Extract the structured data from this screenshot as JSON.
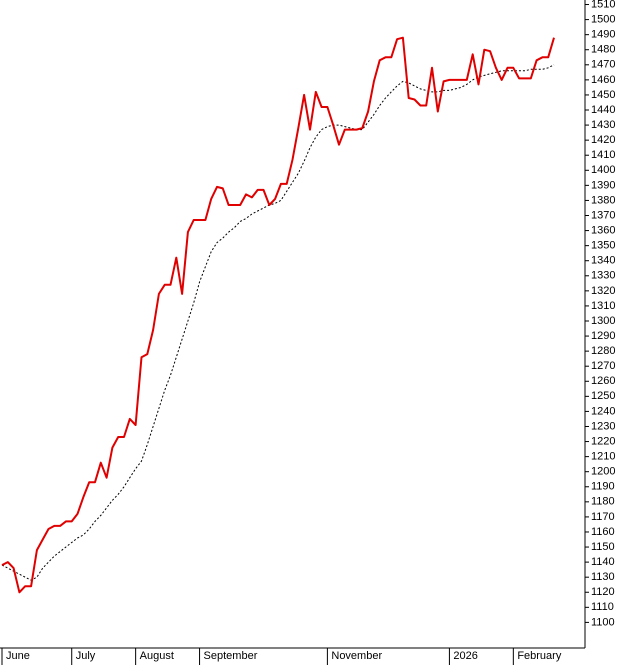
{
  "chart_data": {
    "type": "line",
    "categories": [
      "June",
      null,
      null,
      null,
      null,
      null,
      null,
      null,
      null,
      null,
      null,
      null,
      "July",
      null,
      null,
      null,
      null,
      null,
      null,
      null,
      null,
      null,
      null,
      "August",
      null,
      null,
      null,
      null,
      null,
      null,
      null,
      null,
      null,
      null,
      "September",
      null,
      null,
      null,
      null,
      null,
      null,
      null,
      null,
      null,
      null,
      null,
      null,
      null,
      null,
      null,
      null,
      null,
      null,
      null,
      null,
      null,
      "November",
      null,
      null,
      null,
      null,
      null,
      null,
      null,
      null,
      null,
      null,
      null,
      null,
      null,
      null,
      null,
      null,
      null,
      null,
      null,
      null,
      "2026",
      null,
      null,
      null,
      null,
      null,
      null,
      null,
      null,
      null,
      null,
      "February",
      null,
      null,
      null,
      null,
      null,
      null,
      null
    ],
    "series": [
      {
        "color": "#e00000",
        "style": "solid",
        "values": [
          1138,
          1140,
          1136,
          1120,
          1124,
          1124,
          1148,
          1155,
          1162,
          1164,
          1164,
          1167,
          1167,
          1172,
          1183,
          1193,
          1193,
          1206,
          1196,
          1216,
          1223,
          1223,
          1235,
          1231,
          1276,
          1278,
          1294,
          1318,
          1324,
          1324,
          1342,
          1318,
          1359,
          1367,
          1367,
          1367,
          1381,
          1389,
          1388,
          1377,
          1377,
          1377,
          1384,
          1382,
          1387,
          1387,
          1377,
          1381,
          1391,
          1391,
          1407,
          1428,
          1450,
          1427,
          1452,
          1442,
          1442,
          1430,
          1417,
          1427,
          1427,
          1427,
          1428,
          1439,
          1459,
          1473,
          1475,
          1475,
          1487,
          1488,
          1448,
          1447,
          1443,
          1443,
          1468,
          1439,
          1459,
          1460,
          1460,
          1460,
          1460,
          1477,
          1457,
          1480,
          1479,
          1468,
          1460,
          1468,
          1468,
          1461,
          1461,
          1461,
          1473,
          1475,
          1475,
          1488
        ]
      },
      {
        "color": "#000000",
        "style": "dotted",
        "values": [
          1138,
          1136,
          1134,
          1132,
          1130,
          1128,
          1130,
          1136,
          1140,
          1144,
          1147,
          1150,
          1153,
          1156,
          1158,
          1162,
          1167,
          1171,
          1176,
          1181,
          1185,
          1190,
          1196,
          1202,
          1207,
          1218,
          1230,
          1242,
          1254,
          1264,
          1276,
          1288,
          1300,
          1312,
          1326,
          1336,
          1346,
          1352,
          1355,
          1359,
          1362,
          1366,
          1368,
          1371,
          1373,
          1375,
          1377,
          1378,
          1380,
          1386,
          1392,
          1398,
          1406,
          1415,
          1422,
          1427,
          1429,
          1430,
          1430,
          1429,
          1428,
          1427,
          1427,
          1432,
          1437,
          1443,
          1448,
          1452,
          1456,
          1459,
          1458,
          1456,
          1454,
          1453,
          1452,
          1452,
          1453,
          1453,
          1454,
          1455,
          1457,
          1460,
          1462,
          1463,
          1464,
          1465,
          1466,
          1466,
          1466,
          1466,
          1466,
          1467,
          1467,
          1467,
          1468,
          1470
        ]
      }
    ],
    "ylim": [
      1085,
      1513
    ],
    "yticks": [
      1100,
      1110,
      1120,
      1130,
      1140,
      1150,
      1160,
      1170,
      1180,
      1190,
      1200,
      1210,
      1220,
      1230,
      1240,
      1250,
      1260,
      1270,
      1280,
      1290,
      1300,
      1310,
      1320,
      1330,
      1340,
      1350,
      1360,
      1370,
      1380,
      1390,
      1400,
      1410,
      1420,
      1430,
      1440,
      1450,
      1460,
      1470,
      1480,
      1490,
      1500,
      1510
    ],
    "y_axis_side": "right"
  }
}
